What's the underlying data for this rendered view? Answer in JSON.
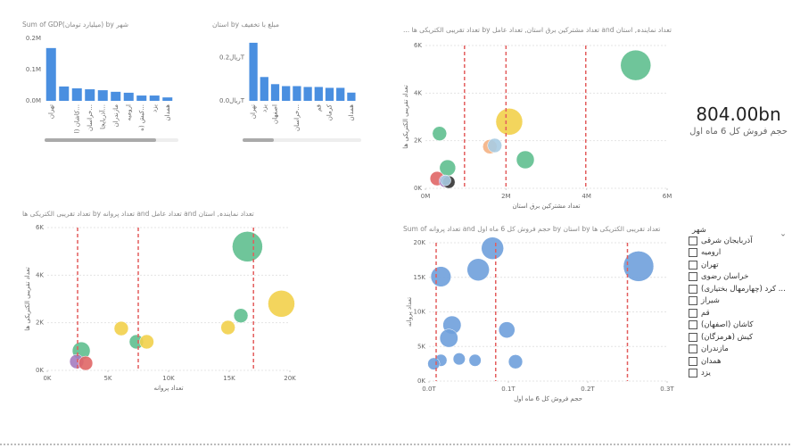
{
  "chart_data": [
    {
      "type": "bar",
      "title": "Sum of GDP(میلیارد تومان) by شهر",
      "color": "#4a8fe0",
      "grid": false,
      "categories": [
        "تهران",
        null,
        "کاشان (ا...",
        "خراسان...",
        "آذربایجا...",
        "مازندران",
        "ارومیه",
        "کیش (ه...",
        "یزد",
        "همدان"
      ],
      "values": [
        169000,
        46000,
        40000,
        37000,
        34000,
        29000,
        26000,
        17000,
        17000,
        11000
      ],
      "ylim": [
        0,
        200000
      ],
      "yticks": [
        {
          "value": 0,
          "label": "0.0M"
        },
        {
          "value": 100000,
          "label": "0.1M"
        },
        {
          "value": 200000,
          "label": "0.2M"
        }
      ]
    },
    {
      "type": "bar",
      "title": "استان by مبلغ با تخفیف",
      "color": "#4a8fe0",
      "grid": false,
      "categories": [
        "تهران",
        "یزد",
        "اصفهان",
        null,
        "خراسان...",
        null,
        "قم",
        "کرمان",
        null,
        "همدان"
      ],
      "values": [
        268000000000,
        110000000000,
        77000000000,
        68000000000,
        68000000000,
        64000000000,
        64000000000,
        60000000000,
        60000000000,
        38000000000
      ],
      "ylim": [
        0,
        280000000000
      ],
      "yticks": [
        {
          "value": 0,
          "label": "ریال0.0T"
        },
        {
          "value": 200000000000,
          "label": "ریال0.2T"
        }
      ]
    },
    {
      "type": "scatter",
      "title": "... تعداد تقریبی الکتریکی ها by تعداد مشترکین برق استان, تعداد عامل and تعداد نمایندہ, استان",
      "x_label": "تعداد مشترکین برق استان",
      "y_label": "تعداد تقریبی الکتریکی ها",
      "grid": true,
      "x": [
        5220000,
        2080000,
        2480000,
        350000,
        1600000,
        1720000,
        550000,
        290000,
        490000,
        580000,
        500000
      ],
      "values": [
        5170,
        2800,
        1200,
        2300,
        1750,
        1800,
        860,
        410,
        300,
        260,
        330
      ],
      "sizes": [
        289,
        225,
        100,
        64,
        64,
        64,
        81,
        64,
        49,
        49,
        36
      ],
      "colors": [
        "#5fbf8f",
        "#f2d04b",
        "#5fbf8f",
        "#5fbf8f",
        "#f4b183",
        "#a9cce3",
        "#5fbf8f",
        "#e06666",
        "#a57cc0",
        "#333333",
        "#a9cce3"
      ],
      "reference_lines": [
        970000,
        2000000,
        3980000
      ],
      "reference_color": "#e35d5d",
      "xlim": [
        0,
        6000000
      ],
      "ylim": [
        0,
        6000
      ],
      "xticks": [
        {
          "value": 0,
          "label": "0M"
        },
        {
          "value": 2000000,
          "label": "2M"
        },
        {
          "value": 4000000,
          "label": "4M"
        },
        {
          "value": 6000000,
          "label": "6M"
        }
      ],
      "yticks": [
        {
          "value": 0,
          "label": "0K"
        },
        {
          "value": 2000,
          "label": "2K"
        },
        {
          "value": 4000,
          "label": "4K"
        },
        {
          "value": 6000,
          "label": "6K"
        }
      ]
    },
    {
      "type": "scatter",
      "title": "تعداد تقریبی الکتریکی ها by تعداد پروانه and تعداد عامل and تعداد نمایندہ, استان",
      "x_label": "تعداد پروانه",
      "y_label": "تعداد تقریبی الکتریکی ها",
      "grid": true,
      "x": [
        16500,
        19300,
        15960,
        14900,
        6100,
        7350,
        8200,
        2800,
        2430,
        3160
      ],
      "values": [
        5200,
        2800,
        2300,
        1800,
        1760,
        1200,
        1200,
        820,
        370,
        300
      ],
      "sizes": [
        289,
        225,
        64,
        64,
        64,
        64,
        64,
        100,
        64,
        64
      ],
      "colors": [
        "#5fbf8f",
        "#f2d04b",
        "#5fbf8f",
        "#f2d04b",
        "#f2d04b",
        "#5fbf8f",
        "#f2d04b",
        "#5fbf8f",
        "#a57cc0",
        "#e06666"
      ],
      "reference_lines": [
        2500,
        7500,
        17000
      ],
      "reference_color": "#e35d5d",
      "xlim": [
        0,
        20000
      ],
      "ylim": [
        0,
        6000
      ],
      "xticks": [
        {
          "value": 0,
          "label": "0K"
        },
        {
          "value": 5000,
          "label": "5K"
        },
        {
          "value": 10000,
          "label": "10K"
        },
        {
          "value": 15000,
          "label": "15K"
        },
        {
          "value": 20000,
          "label": "20K"
        }
      ],
      "yticks": [
        {
          "value": 0,
          "label": "0K"
        },
        {
          "value": 2000,
          "label": "2K"
        },
        {
          "value": 4000,
          "label": "4K"
        },
        {
          "value": 6000,
          "label": "6K"
        }
      ]
    },
    {
      "type": "scatter",
      "title": "Sum of تعداد پروانه and حجم فروش کل 6 ماه اول by استان by تعداد تقریبی الکتریکی ها",
      "x_label": "حجم فروش کل 6 ماه اول",
      "y_label": "تعداد پروانه",
      "grid": true,
      "x": [
        264000000000,
        80000000000,
        62000000000,
        15000000000,
        29000000000,
        25000000000,
        98000000000,
        109000000000,
        15000000000,
        38000000000,
        58000000000,
        6000000000
      ],
      "values": [
        16600,
        19200,
        16100,
        15100,
        8100,
        6200,
        7400,
        2800,
        3000,
        3200,
        3000,
        2500
      ],
      "sizes": [
        225,
        121,
        121,
        100,
        81,
        81,
        64,
        49,
        36,
        36,
        36,
        36
      ],
      "color": "#6fa0dc",
      "reference_lines": [
        9000000000,
        84000000000,
        250000000000
      ],
      "reference_color": "#e35d5d",
      "xlim": [
        0,
        300000000000
      ],
      "ylim": [
        0,
        20000
      ],
      "xticks": [
        {
          "value": 0,
          "label": "0.0T"
        },
        {
          "value": 100000000000,
          "label": "0.1T"
        },
        {
          "value": 200000000000,
          "label": "0.2T"
        },
        {
          "value": 300000000000,
          "label": "0.3T"
        }
      ],
      "yticks": [
        {
          "value": 0,
          "label": "0K"
        },
        {
          "value": 5000,
          "label": "5K"
        },
        {
          "value": 10000,
          "label": "10K"
        },
        {
          "value": 15000,
          "label": "15K"
        },
        {
          "value": 20000,
          "label": "20K"
        }
      ]
    }
  ],
  "card": {
    "value": "804.00bn",
    "label": "حجم فروش کل 6 ماه اول"
  },
  "slicer": {
    "title": "شهر",
    "items": [
      "آذربایجان شرقی",
      "ارومیه",
      "تهران",
      "خراسان رضوی",
      "... کرد (چهارمهال بختیاری)",
      "شیراز",
      "قم",
      "کاشان (اصفهان)",
      "کیش (هرمزگان)",
      "مازندران",
      "همدان",
      "یزد"
    ]
  }
}
